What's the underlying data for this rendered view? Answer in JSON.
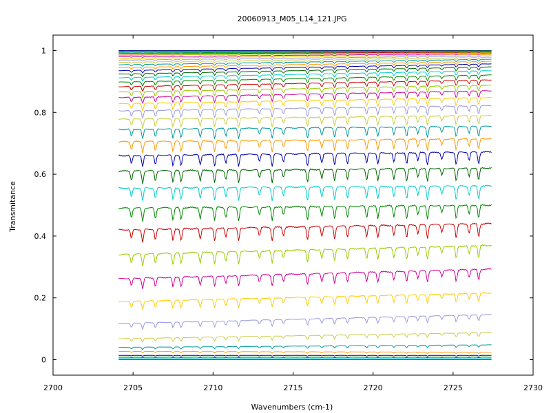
{
  "chart_data": {
    "type": "line",
    "title": "20060913_M05_L14_121.JPG",
    "xlabel": "Wavenumbers (cm-1)",
    "ylabel": "Transmitance",
    "xlim": [
      2700,
      2730
    ],
    "ylim": [
      -0.05,
      1.05
    ],
    "x_ticks": [
      2700,
      2705,
      2710,
      2715,
      2720,
      2725,
      2730
    ],
    "y_ticks": [
      0,
      0.2,
      0.4,
      0.6,
      0.8,
      1
    ],
    "x_range": [
      2704.1,
      2727.4
    ],
    "grid": false,
    "legend": "none",
    "series_colors": [
      "#0000aa",
      "#006600",
      "#00cccc",
      "#008800",
      "#cc0000",
      "#99cc00",
      "#cc0099",
      "#ffcc00",
      "#9999dd",
      "#cccc44",
      "#009999",
      "#ff9900"
    ],
    "absorption_lines": [
      2704.9,
      2705.6,
      2706.4,
      2707.5,
      2708.0,
      2709.2,
      2710.1,
      2710.8,
      2711.6,
      2712.9,
      2713.7,
      2714.4,
      2715.9,
      2716.8,
      2717.6,
      2718.4,
      2719.6,
      2720.3,
      2721.3,
      2722.1,
      2722.8,
      2723.4,
      2724.3,
      2725.2,
      2726.0,
      2726.6
    ],
    "series": [
      {
        "start": 1.0,
        "end": 1.0
      },
      {
        "start": 0.998,
        "end": 0.999
      },
      {
        "start": 0.995,
        "end": 0.998
      },
      {
        "start": 0.992,
        "end": 0.997
      },
      {
        "start": 0.989,
        "end": 0.995
      },
      {
        "start": 0.985,
        "end": 0.993
      },
      {
        "start": 0.98,
        "end": 0.99
      },
      {
        "start": 0.975,
        "end": 0.987
      },
      {
        "start": 0.969,
        "end": 0.983
      },
      {
        "start": 0.962,
        "end": 0.978
      },
      {
        "start": 0.954,
        "end": 0.972
      },
      {
        "start": 0.945,
        "end": 0.965
      },
      {
        "start": 0.935,
        "end": 0.957
      },
      {
        "start": 0.924,
        "end": 0.947
      },
      {
        "start": 0.912,
        "end": 0.935
      },
      {
        "start": 0.898,
        "end": 0.921
      },
      {
        "start": 0.883,
        "end": 0.905
      },
      {
        "start": 0.866,
        "end": 0.888
      },
      {
        "start": 0.848,
        "end": 0.87
      },
      {
        "start": 0.828,
        "end": 0.848
      },
      {
        "start": 0.805,
        "end": 0.822
      },
      {
        "start": 0.778,
        "end": 0.79
      },
      {
        "start": 0.745,
        "end": 0.755
      },
      {
        "start": 0.705,
        "end": 0.715
      },
      {
        "start": 0.66,
        "end": 0.672
      },
      {
        "start": 0.61,
        "end": 0.62
      },
      {
        "start": 0.555,
        "end": 0.562
      },
      {
        "start": 0.49,
        "end": 0.5
      },
      {
        "start": 0.42,
        "end": 0.44
      },
      {
        "start": 0.34,
        "end": 0.37
      },
      {
        "start": 0.262,
        "end": 0.293
      },
      {
        "start": 0.188,
        "end": 0.216
      },
      {
        "start": 0.117,
        "end": 0.146
      },
      {
        "start": 0.068,
        "end": 0.088
      },
      {
        "start": 0.04,
        "end": 0.048
      },
      {
        "start": 0.027,
        "end": 0.024
      },
      {
        "start": 0.014,
        "end": 0.014
      },
      {
        "start": 0.008,
        "end": 0.008
      },
      {
        "start": 0.004,
        "end": 0.004
      },
      {
        "start": 0.0,
        "end": 0.0
      }
    ]
  }
}
